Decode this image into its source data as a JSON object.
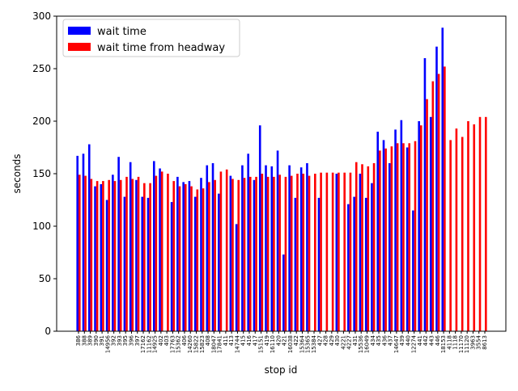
{
  "chart_data": {
    "type": "bar",
    "xlabel": "stop id",
    "ylabel": "seconds",
    "categories": [
      "386",
      "388",
      "389",
      "390",
      "391",
      "14956",
      "392",
      "393",
      "395",
      "396",
      "397",
      "17162",
      "11162",
      "14925",
      "402",
      "403",
      "17763",
      "15362",
      "406",
      "14260",
      "15822",
      "15823",
      "408",
      "18047",
      "17841",
      "411",
      "413",
      "14744",
      "415",
      "416",
      "417",
      "15151",
      "419",
      "16110",
      "420",
      "421",
      "16038",
      "422",
      "15364",
      "15365",
      "15384",
      "427",
      "428",
      "429",
      "430",
      "4221",
      "4227",
      "431",
      "15536",
      "16049",
      "434",
      "435",
      "436",
      "437",
      "14647",
      "439",
      "440",
      "12274",
      "441",
      "442",
      "443",
      "446",
      "18153",
      "4118",
      "1118",
      "11170",
      "11120",
      "3963",
      "3554",
      "8613"
    ],
    "series": [
      {
        "name": "wait time",
        "color": "#0000ff",
        "values": [
          167,
          169,
          178,
          138,
          140,
          125,
          149,
          166,
          128,
          161,
          144,
          128,
          127,
          162,
          155,
          null,
          123,
          147,
          142,
          143,
          128,
          146,
          158,
          160,
          131,
          null,
          148,
          102,
          158,
          169,
          144,
          196,
          158,
          157,
          172,
          73,
          158,
          127,
          156,
          160,
          null,
          127,
          null,
          null,
          150,
          null,
          121,
          128,
          150,
          127,
          141,
          190,
          182,
          160,
          192,
          201,
          175,
          115,
          200,
          260,
          204,
          271,
          289,
          null,
          null,
          null,
          null,
          null,
          null,
          null
        ]
      },
      {
        "name": "wait time from headway",
        "color": "#ff0000",
        "values": [
          149,
          148,
          145,
          143,
          143,
          144,
          143,
          144,
          147,
          145,
          147,
          141,
          141,
          148,
          152,
          150,
          143,
          138,
          140,
          138,
          135,
          136,
          142,
          144,
          152,
          154,
          145,
          144,
          146,
          147,
          147,
          150,
          147,
          147,
          149,
          147,
          148,
          150,
          150,
          148,
          150,
          151,
          151,
          151,
          151,
          151,
          151,
          161,
          159,
          157,
          160,
          172,
          174,
          176,
          179,
          179,
          179,
          181,
          196,
          221,
          238,
          245,
          252,
          182,
          193,
          185,
          200,
          197,
          204,
          204
        ]
      }
    ],
    "ylim": [
      0,
      300
    ],
    "yticks": [
      0,
      50,
      100,
      150,
      200,
      250,
      300
    ],
    "legend": "upper left"
  }
}
